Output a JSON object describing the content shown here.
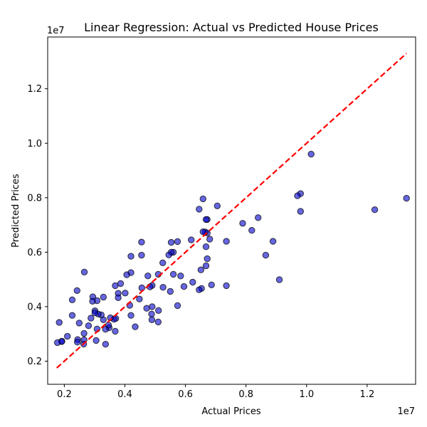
{
  "chart_data": {
    "type": "scatter",
    "title": "Linear Regression: Actual vs Predicted House Prices",
    "xlabel": "Actual Prices",
    "ylabel": "Predicted Prices",
    "x_offset_label": "1e7",
    "y_offset_label": "1e7",
    "xlim": [
      1450000,
      13600000
    ],
    "ylim": [
      1150000,
      13900000
    ],
    "x_ticks": [
      {
        "value": 2000000,
        "label": "0.2"
      },
      {
        "value": 4000000,
        "label": "0.4"
      },
      {
        "value": 6000000,
        "label": "0.6"
      },
      {
        "value": 8000000,
        "label": "0.8"
      },
      {
        "value": 10000000,
        "label": "1.0"
      },
      {
        "value": 12000000,
        "label": "1.2"
      }
    ],
    "y_ticks": [
      {
        "value": 2000000,
        "label": "0.2"
      },
      {
        "value": 4000000,
        "label": "0.4"
      },
      {
        "value": 6000000,
        "label": "0.6"
      },
      {
        "value": 8000000,
        "label": "0.8"
      },
      {
        "value": 10000000,
        "label": "1.0"
      },
      {
        "value": 12000000,
        "label": "1.2"
      }
    ],
    "grid": false,
    "colors": {
      "points_fill": "#0000cc",
      "points_edge": "#000000",
      "line": "#ff0000"
    },
    "reference_line": {
      "style": "dashed",
      "from": [
        1750000,
        1750000
      ],
      "to": [
        13300000,
        13300000
      ]
    },
    "points": [
      [
        13300000,
        7980000
      ],
      [
        12250000,
        7560000
      ],
      [
        10150000,
        9600000
      ],
      [
        9800000,
        8150000
      ],
      [
        9700000,
        8070000
      ],
      [
        9800000,
        7500000
      ],
      [
        9100000,
        4990000
      ],
      [
        8890000,
        6400000
      ],
      [
        8650000,
        5890000
      ],
      [
        8400000,
        7270000
      ],
      [
        8190000,
        6800000
      ],
      [
        7890000,
        7060000
      ],
      [
        7350000,
        6400000
      ],
      [
        7350000,
        4770000
      ],
      [
        7050000,
        7700000
      ],
      [
        6860000,
        4800000
      ],
      [
        6800000,
        6480000
      ],
      [
        6720000,
        7200000
      ],
      [
        6680000,
        7200000
      ],
      [
        6720000,
        6700000
      ],
      [
        6650000,
        6740000
      ],
      [
        6580000,
        6750000
      ],
      [
        6680000,
        6200000
      ],
      [
        6720000,
        5760000
      ],
      [
        6680000,
        5500000
      ],
      [
        6580000,
        7960000
      ],
      [
        6450000,
        7580000
      ],
      [
        6510000,
        5350000
      ],
      [
        6530000,
        4670000
      ],
      [
        6450000,
        4620000
      ],
      [
        6240000,
        4900000
      ],
      [
        6190000,
        6450000
      ],
      [
        5950000,
        4740000
      ],
      [
        5840000,
        5130000
      ],
      [
        5740000,
        6390000
      ],
      [
        5740000,
        4040000
      ],
      [
        5600000,
        6000000
      ],
      [
        5530000,
        6000000
      ],
      [
        5530000,
        6360000
      ],
      [
        5450000,
        5900000
      ],
      [
        5600000,
        5190000
      ],
      [
        5500000,
        4560000
      ],
      [
        5250000,
        5610000
      ],
      [
        5260000,
        4710000
      ],
      [
        5100000,
        5190000
      ],
      [
        5110000,
        3860000
      ],
      [
        5100000,
        3440000
      ],
      [
        4900000,
        4780000
      ],
      [
        4830000,
        4730000
      ],
      [
        4900000,
        4000000
      ],
      [
        4880000,
        3730000
      ],
      [
        4890000,
        3520000
      ],
      [
        4760000,
        5130000
      ],
      [
        4720000,
        3940000
      ],
      [
        4550000,
        6370000
      ],
      [
        4550000,
        5890000
      ],
      [
        4560000,
        4690000
      ],
      [
        4480000,
        4280000
      ],
      [
        4340000,
        3260000
      ],
      [
        4200000,
        5850000
      ],
      [
        4200000,
        5250000
      ],
      [
        4200000,
        3680000
      ],
      [
        4160000,
        4050000
      ],
      [
        4060000,
        5170000
      ],
      [
        4010000,
        4500000
      ],
      [
        3860000,
        4850000
      ],
      [
        3780000,
        4490000
      ],
      [
        3780000,
        4330000
      ],
      [
        3680000,
        4770000
      ],
      [
        3700000,
        3570000
      ],
      [
        3680000,
        3100000
      ],
      [
        3640000,
        3540000
      ],
      [
        3520000,
        3590000
      ],
      [
        3480000,
        3230000
      ],
      [
        3460000,
        3320000
      ],
      [
        3360000,
        3170000
      ],
      [
        3360000,
        2620000
      ],
      [
        3290000,
        4350000
      ],
      [
        3290000,
        3520000
      ],
      [
        3220000,
        3700000
      ],
      [
        3120000,
        3730000
      ],
      [
        3080000,
        4220000
      ],
      [
        3080000,
        3180000
      ],
      [
        3050000,
        2760000
      ],
      [
        3010000,
        3850000
      ],
      [
        3010000,
        3770000
      ],
      [
        2940000,
        4360000
      ],
      [
        2930000,
        4200000
      ],
      [
        2880000,
        3580000
      ],
      [
        2800000,
        3300000
      ],
      [
        2660000,
        5270000
      ],
      [
        2650000,
        3020000
      ],
      [
        2640000,
        2630000
      ],
      [
        2650000,
        2780000
      ],
      [
        2490000,
        3400000
      ],
      [
        2420000,
        4590000
      ],
      [
        2440000,
        2790000
      ],
      [
        2430000,
        2700000
      ],
      [
        2260000,
        4250000
      ],
      [
        2260000,
        3680000
      ],
      [
        2100000,
        2910000
      ],
      [
        1920000,
        2730000
      ],
      [
        1910000,
        2720000
      ],
      [
        1830000,
        3420000
      ],
      [
        1770000,
        2680000
      ]
    ]
  }
}
